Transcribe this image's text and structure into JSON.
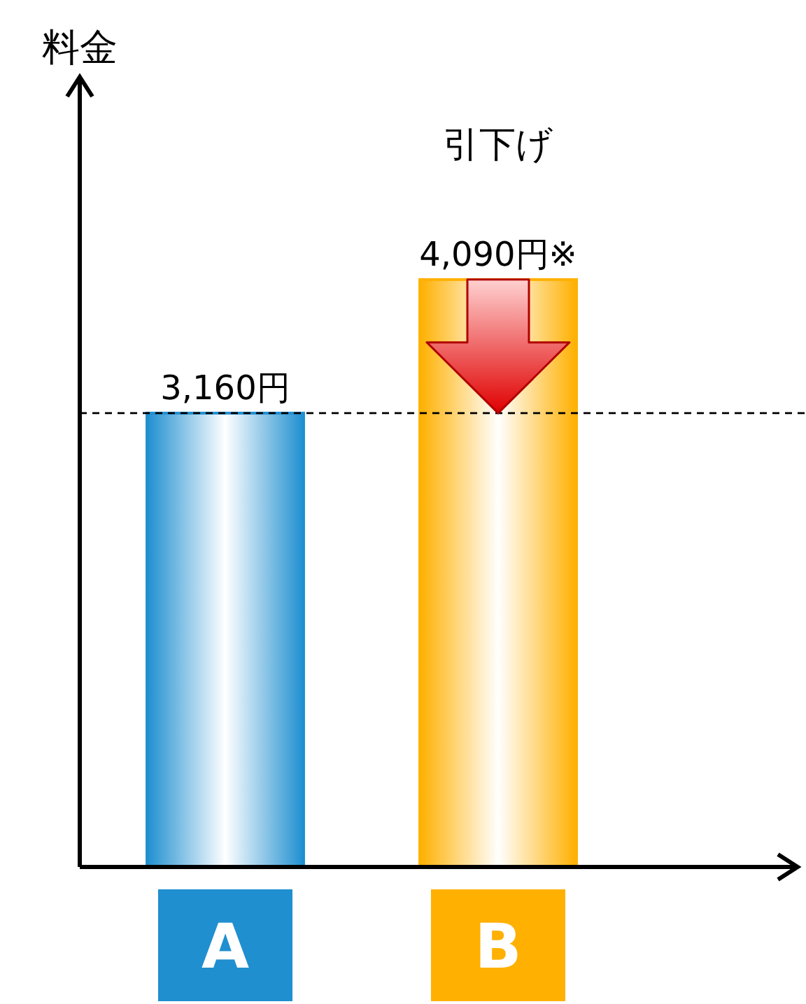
{
  "chart_data": {
    "type": "bar",
    "categories": [
      "A",
      "B"
    ],
    "values": [
      3160,
      4090
    ],
    "colors": [
      "#1f8fd0",
      "#ffb000"
    ],
    "value_labels": [
      "3,160円",
      "4,090円※"
    ],
    "ref_lines": [
      {
        "axis": "y",
        "value": 3160,
        "line_style": "dashed",
        "color": "#000000"
      }
    ],
    "annotations": [
      "料金",
      "引下げ"
    ]
  }
}
